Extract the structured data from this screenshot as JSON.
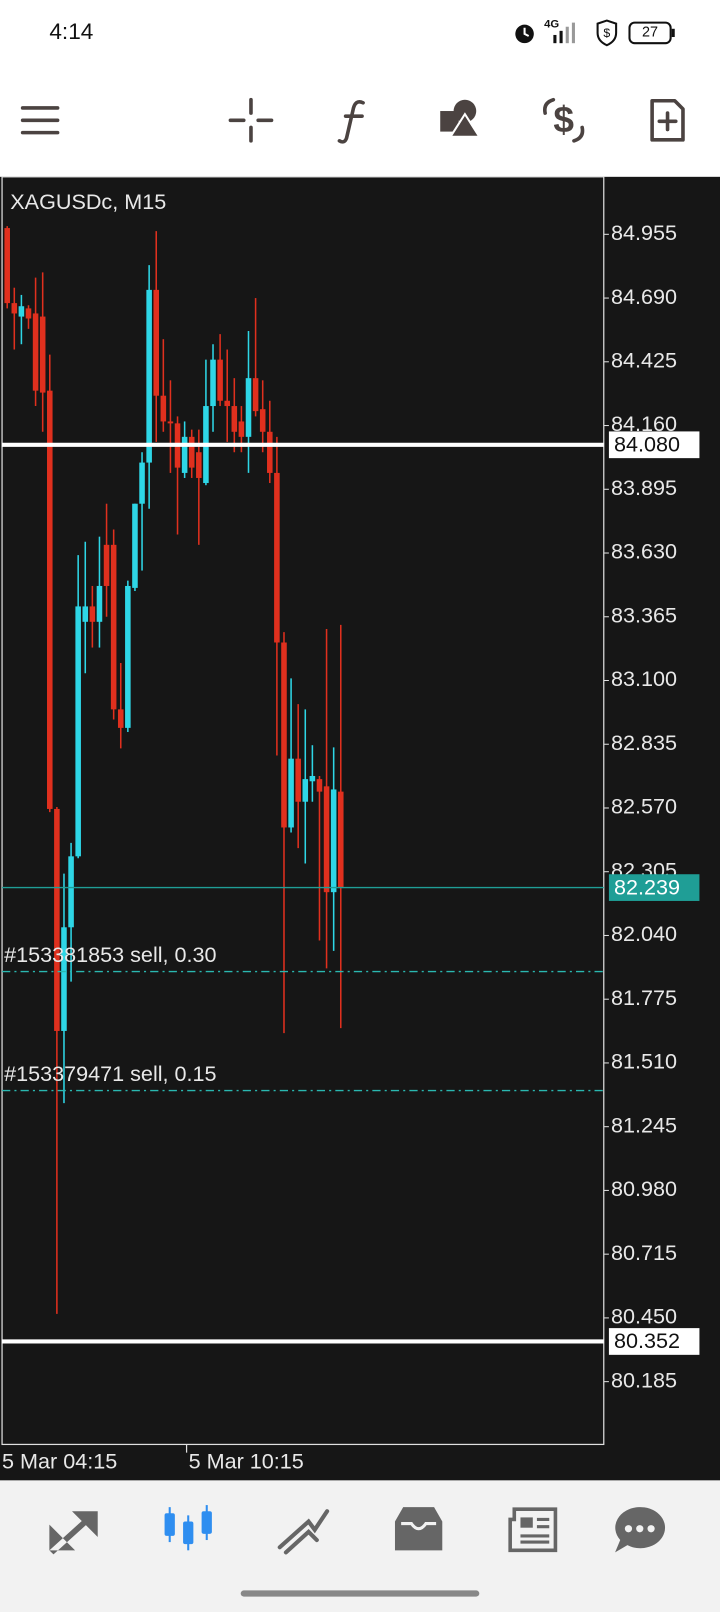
{
  "status_bar": {
    "time": "4:14",
    "network": "4G",
    "battery": "27"
  },
  "chart_data": {
    "type": "candlestick",
    "title": "XAGUSDc, M15",
    "categories": [
      "5 Mar 04:15",
      null,
      null,
      null,
      null,
      null,
      null,
      null,
      null,
      null,
      null,
      null,
      null,
      null,
      null,
      null,
      null,
      null,
      null,
      null,
      null,
      null,
      null,
      null,
      null,
      null,
      "5 Mar 10:15",
      null,
      null,
      null,
      null,
      null,
      null,
      null,
      null,
      null,
      null,
      null,
      null,
      null,
      null,
      null,
      null,
      null,
      null,
      null,
      null,
      null
    ],
    "open": [
      84.981,
      84.669,
      84.613,
      84.647,
      84.626,
      84.613,
      84.305,
      82.566,
      81.643,
      82.074,
      82.369,
      83.344,
      83.408,
      83.344,
      83.664,
      83.664,
      82.98,
      82.903,
      83.485,
      83.835,
      84.006,
      84.724,
      84.284,
      84.177,
      84.169,
      83.963,
      84.113,
      84.049,
      83.921,
      84.241,
      84.434,
      84.263,
      84.241,
      84.177,
      84.113,
      84.357,
      84.228,
      84.134,
      83.963,
      83.258,
      82.489,
      82.775,
      82.596,
      82.681,
      82.69,
      82.66,
      82.22,
      82.638
    ],
    "high": [
      84.989,
      84.733,
      84.703,
      84.66,
      84.775,
      84.797,
      84.455,
      82.574,
      82.297,
      82.425,
      83.621,
      83.677,
      83.493,
      83.698,
      83.835,
      83.728,
      83.173,
      83.515,
      83.835,
      84.049,
      84.827,
      84.968,
      84.519,
      84.348,
      84.198,
      84.177,
      84.143,
      84.143,
      84.434,
      84.498,
      84.54,
      84.476,
      84.357,
      84.241,
      84.553,
      84.69,
      84.348,
      84.263,
      84.113,
      83.301,
      83.109,
      83.002,
      82.98,
      82.831,
      82.703,
      83.314,
      82.822,
      83.331
    ],
    "low": [
      84.647,
      84.476,
      84.498,
      84.562,
      84.241,
      84.134,
      82.553,
      80.467,
      81.343,
      81.848,
      82.361,
      83.13,
      83.237,
      83.237,
      83.365,
      82.938,
      82.818,
      82.886,
      83.472,
      83.557,
      83.814,
      84.092,
      84.134,
      83.963,
      83.707,
      83.942,
      83.942,
      83.664,
      83.912,
      84.134,
      84.241,
      84.092,
      84.049,
      84.049,
      83.963,
      84.198,
      84.049,
      83.921,
      82.788,
      81.634,
      82.468,
      82.403,
      82.339,
      82.596,
      82.019,
      81.903,
      81.976,
      81.655
    ],
    "close": [
      84.669,
      84.626,
      84.656,
      84.605,
      84.305,
      84.297,
      82.566,
      81.643,
      82.074,
      82.369,
      83.408,
      83.408,
      83.344,
      83.493,
      83.493,
      82.98,
      82.903,
      83.493,
      83.835,
      84.006,
      84.724,
      84.284,
      84.177,
      84.169,
      83.985,
      84.113,
      83.985,
      83.942,
      84.241,
      84.434,
      84.263,
      84.241,
      84.134,
      84.113,
      84.357,
      84.22,
      84.134,
      83.963,
      83.258,
      82.489,
      82.775,
      82.596,
      82.69,
      82.703,
      82.638,
      82.22,
      82.647,
      82.237
    ],
    "up_color": "#2ed6e6",
    "down_color": "#e0301e",
    "ylim": [
      79.924,
      85.194
    ],
    "yticks": [
      84.955,
      {
        "value": 84.69,
        "label": "84.690"
      },
      84.425,
      {
        "value": 84.16,
        "label": "84.160"
      },
      83.895,
      {
        "value": 83.63,
        "label": "83.630"
      },
      83.365,
      {
        "value": 83.1,
        "label": "83.100"
      },
      82.835,
      {
        "value": 82.57,
        "label": "82.570"
      },
      82.305,
      {
        "value": 82.04,
        "label": "82.040"
      },
      81.775,
      {
        "value": 81.51,
        "label": "81.510"
      },
      81.245,
      {
        "value": 80.98,
        "label": "80.980"
      },
      80.715,
      {
        "value": 80.45,
        "label": "80.450"
      },
      80.185
    ],
    "price_lines": [
      {
        "value": 84.08,
        "label": "84.080",
        "color": "#ffffff"
      },
      {
        "value": 82.239,
        "label": "82.239",
        "color": "#1f9e96"
      },
      {
        "value": 80.352,
        "label": "80.352",
        "color": "#ffffff"
      }
    ],
    "order_lines": [
      {
        "value": 81.89,
        "label": "#153381853 sell, 0.30"
      },
      {
        "value": 81.395,
        "label": "#153379471 sell, 0.15"
      }
    ]
  }
}
